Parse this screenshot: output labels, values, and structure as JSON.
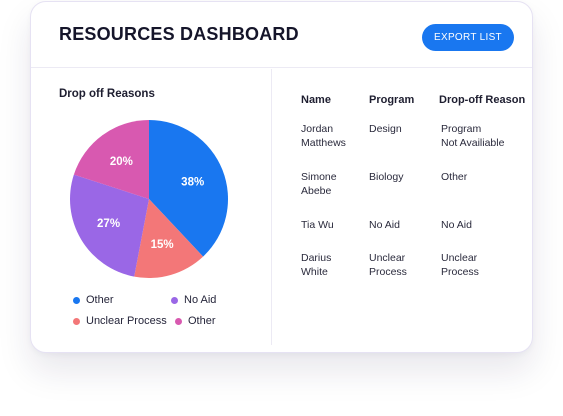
{
  "header": {
    "title": "RESOURCES DASHBOARD",
    "export_label": "EXPORT LIST"
  },
  "chart_data": {
    "type": "pie",
    "title": "Drop off Reasons",
    "slices": [
      {
        "label": "Other",
        "value": 38,
        "display": "38%",
        "color": "#1977f0"
      },
      {
        "label": "Unclear Process",
        "value": 15,
        "display": "15%",
        "color": "#f37778"
      },
      {
        "label": "No Aid",
        "value": 27,
        "display": "27%",
        "color": "#9a67e6"
      },
      {
        "label": "Other",
        "value": 20,
        "display": "20%",
        "color": "#d859b0"
      }
    ],
    "legend": [
      {
        "label": "Other",
        "color": "#1977f0"
      },
      {
        "label": "No Aid",
        "color": "#9a67e6"
      },
      {
        "label": "Unclear Process",
        "color": "#f37778"
      },
      {
        "label": "Other",
        "color": "#d859b0"
      }
    ],
    "legend_placement": "bottom"
  },
  "table": {
    "columns": [
      "Name",
      "Program",
      "Drop-off Reason"
    ],
    "rows": [
      {
        "name": "Jordan\nMatthews",
        "program": "Design",
        "reason": "Program\nNot Availiable"
      },
      {
        "name": "Simone\nAbebe",
        "program": "Biology",
        "reason": "Other"
      },
      {
        "name": "Tia Wu",
        "program": "No Aid",
        "reason": "No Aid"
      },
      {
        "name": "Darius\nWhite",
        "program": "Unclear\nProcess",
        "reason": "Unclear\nProcess"
      }
    ]
  }
}
